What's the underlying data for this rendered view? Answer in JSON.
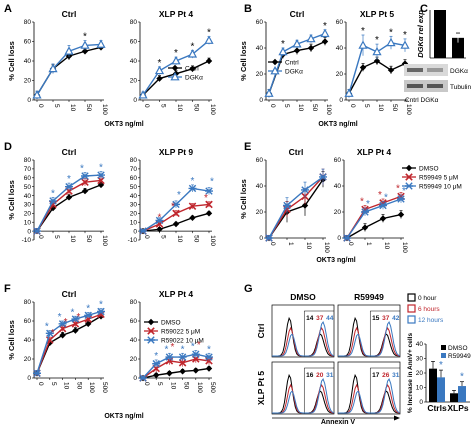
{
  "colors": {
    "black": "#000000",
    "blue": "#3a78c0",
    "red": "#c0262d",
    "gray": "#777777"
  },
  "panels": [
    {
      "id": "A",
      "label": "A"
    },
    {
      "id": "B",
      "label": "B"
    },
    {
      "id": "C",
      "label": "C"
    },
    {
      "id": "D",
      "label": "D"
    },
    {
      "id": "E",
      "label": "E"
    },
    {
      "id": "F",
      "label": "F"
    },
    {
      "id": "G",
      "label": "G"
    }
  ],
  "chart_data": [
    {
      "id": "A-ctrl",
      "panel": "A",
      "type": "line",
      "title": "Ctrl",
      "ylabel": "% Cell loss",
      "ylim": [
        0,
        80
      ],
      "yticks": [
        0,
        20,
        40,
        60,
        80
      ],
      "categories": [
        "0",
        "5",
        "10",
        "50",
        "100"
      ],
      "series": [
        {
          "key": "s1",
          "name": "Cntrl",
          "color": "#000000",
          "marker": "diamond",
          "values": [
            5,
            32,
            45,
            50,
            54
          ],
          "err": [
            4,
            4,
            4,
            3,
            3
          ]
        },
        {
          "key": "s2",
          "name": "DGKα",
          "color": "#3a78c0",
          "marker": "triangle-open",
          "values": [
            5,
            32,
            50,
            56,
            57
          ],
          "err": [
            4,
            5,
            6,
            5,
            4
          ]
        }
      ],
      "annotations": [
        "*"
      ]
    },
    {
      "id": "A-xlp",
      "panel": "A",
      "type": "line",
      "title": "XLP Pt 4",
      "xlabel": "OKT3 ng/ml",
      "ylim": [
        0,
        80
      ],
      "yticks": [
        0,
        20,
        40,
        60,
        80
      ],
      "categories": [
        "0",
        "5",
        "10",
        "50",
        "100"
      ],
      "series": [
        {
          "key": "s1",
          "name": "Cntrl",
          "color": "#000000",
          "marker": "diamond",
          "values": [
            5,
            22,
            27,
            32,
            40
          ],
          "err": [
            3,
            3,
            3,
            3,
            3
          ]
        },
        {
          "key": "s2",
          "name": "DGKα",
          "color": "#3a78c0",
          "marker": "triangle-open",
          "values": [
            5,
            30,
            40,
            47,
            61
          ],
          "err": [
            3,
            4,
            4,
            4,
            4
          ]
        }
      ],
      "legend": [
        {
          "key": "s1",
          "label": "Cntrl"
        },
        {
          "key": "s2",
          "label": "DGKα"
        }
      ],
      "annotations": [
        "*",
        "*",
        "*",
        "*"
      ]
    },
    {
      "id": "B-ctrl",
      "panel": "B",
      "type": "line",
      "title": "Ctrl",
      "ylabel": "% Cell loss",
      "ylim": [
        0,
        60
      ],
      "yticks": [
        0,
        20,
        40,
        60
      ],
      "categories": [
        "0",
        "5",
        "10",
        "50",
        "100"
      ],
      "series": [
        {
          "key": "s1",
          "name": "Cntrl",
          "color": "#000000",
          "marker": "diamond",
          "values": [
            5,
            35,
            38,
            40,
            45
          ],
          "err": [
            3,
            3,
            3,
            3,
            3
          ]
        },
        {
          "key": "s2",
          "name": "DGKα",
          "color": "#3a78c0",
          "marker": "triangle-open",
          "values": [
            5,
            37,
            43,
            47,
            51
          ],
          "err": [
            3,
            3,
            3,
            3,
            3
          ]
        }
      ],
      "annotations": [
        "*",
        "*"
      ]
    },
    {
      "id": "B-xlp",
      "panel": "B",
      "type": "line",
      "title": "XLP Pt 5",
      "xlabel": "OKT3 ng/ml",
      "ylim": [
        0,
        60
      ],
      "yticks": [
        0,
        20,
        40,
        60
      ],
      "categories": [
        "0",
        "5",
        "10",
        "50",
        "100"
      ],
      "series": [
        {
          "key": "s1",
          "name": "Cntrl",
          "color": "#000000",
          "marker": "diamond",
          "values": [
            5,
            25,
            30,
            23,
            28
          ],
          "err": [
            3,
            3,
            3,
            3,
            3
          ]
        },
        {
          "key": "s2",
          "name": "DGKα",
          "color": "#3a78c0",
          "marker": "triangle-open",
          "values": [
            5,
            42,
            37,
            44,
            42
          ],
          "err": [
            3,
            8,
            6,
            5,
            5
          ]
        }
      ],
      "legend": [
        {
          "key": "s1",
          "label": "Cntrl"
        },
        {
          "key": "s2",
          "label": "DGKα"
        }
      ],
      "annotations": [
        "*",
        "*",
        "*",
        "*"
      ]
    },
    {
      "id": "C-bar",
      "panel": "C",
      "type": "bar",
      "ylabel": "DGKα rel exp",
      "ylim": [
        0,
        1
      ],
      "categories": [
        "Cntrl",
        "DGKα"
      ],
      "values": [
        1.0,
        0.42
      ],
      "err": [
        0.0,
        0.1
      ],
      "blot": {
        "bands": [
          "DGKα",
          "Tubulin"
        ],
        "lanes": [
          "Cntrl",
          "DGKα"
        ]
      }
    },
    {
      "id": "D-ctrl",
      "panel": "D",
      "type": "line",
      "title": "Ctrl",
      "ylabel": "% Cell loss",
      "ylim": [
        -10,
        80
      ],
      "yticks": [
        -10,
        0,
        10,
        20,
        30,
        40,
        50,
        60,
        70,
        80
      ],
      "categories": [
        "0",
        "5",
        "10",
        "50",
        "100"
      ],
      "series": [
        {
          "key": "s1",
          "name": "DMSO",
          "color": "#000000",
          "marker": "diamond",
          "values": [
            0,
            26,
            38,
            45,
            52
          ],
          "err": [
            3,
            3,
            3,
            3,
            3
          ]
        },
        {
          "key": "s2",
          "name": "R59949 5 μM",
          "color": "#c0262d",
          "marker": "x",
          "values": [
            0,
            30,
            45,
            55,
            57
          ],
          "err": [
            3,
            4,
            4,
            4,
            4
          ]
        },
        {
          "key": "s3",
          "name": "R59949 10 μM",
          "color": "#3a78c0",
          "marker": "star",
          "values": [
            0,
            34,
            50,
            62,
            63
          ],
          "err": [
            3,
            4,
            4,
            4,
            4
          ]
        }
      ],
      "annotations": [
        "*",
        "*",
        "*",
        "*"
      ]
    },
    {
      "id": "D-xlp",
      "panel": "D",
      "type": "line",
      "title": "XLP Pt 9",
      "xlabel": "OKT3 ng/ml",
      "ylim": [
        -10,
        80
      ],
      "yticks": [
        -10,
        0,
        10,
        20,
        30,
        40,
        50,
        60,
        70,
        80
      ],
      "categories": [
        "0",
        "5",
        "10",
        "50",
        "100"
      ],
      "series": [
        {
          "key": "s1",
          "name": "DMSO",
          "color": "#000000",
          "marker": "diamond",
          "values": [
            0,
            2,
            8,
            15,
            20
          ],
          "err": [
            2,
            2,
            2,
            2,
            2
          ]
        },
        {
          "key": "s2",
          "name": "R59949 5 μM",
          "color": "#c0262d",
          "marker": "x",
          "values": [
            0,
            8,
            20,
            28,
            30
          ],
          "err": [
            2,
            3,
            3,
            3,
            3
          ]
        },
        {
          "key": "s3",
          "name": "R59949 10 μM",
          "color": "#3a78c0",
          "marker": "star",
          "values": [
            0,
            12,
            30,
            48,
            45
          ],
          "err": [
            2,
            3,
            4,
            4,
            4
          ]
        }
      ],
      "annotations": [
        "*",
        "*",
        "*",
        "*",
        "*",
        "*"
      ]
    },
    {
      "id": "E-ctrl",
      "panel": "E",
      "type": "line",
      "title": "Ctrl",
      "ylabel": "% Cell loss",
      "ylim": [
        0,
        60
      ],
      "yticks": [
        0,
        20,
        40,
        60
      ],
      "categories": [
        "0",
        "1",
        "10",
        "100"
      ],
      "series": [
        {
          "key": "s1",
          "name": "DMSO",
          "color": "#000000",
          "marker": "diamond",
          "values": [
            0,
            20,
            25,
            45
          ],
          "err": [
            2,
            8,
            8,
            6
          ]
        },
        {
          "key": "s2",
          "name": "R59949 5 μM",
          "color": "#c0262d",
          "marker": "x",
          "values": [
            0,
            22,
            32,
            47
          ],
          "err": [
            2,
            6,
            6,
            6
          ]
        },
        {
          "key": "s3",
          "name": "R59949 10 μM",
          "color": "#3a78c0",
          "marker": "star",
          "values": [
            0,
            25,
            37,
            47
          ],
          "err": [
            2,
            6,
            6,
            6
          ]
        }
      ]
    },
    {
      "id": "E-xlp",
      "panel": "E",
      "type": "line",
      "title": "XLP Pt 4",
      "xlabel": "OKT3 ng/ml",
      "ylim": [
        0,
        60
      ],
      "yticks": [
        0,
        20,
        40,
        60
      ],
      "categories": [
        "0",
        "1",
        "10",
        "100"
      ],
      "series": [
        {
          "key": "s1",
          "name": "DMSO",
          "color": "#000000",
          "marker": "diamond",
          "values": [
            0,
            8,
            15,
            18
          ],
          "err": [
            2,
            3,
            3,
            3
          ]
        },
        {
          "key": "s2",
          "name": "R59949 5 μM",
          "color": "#c0262d",
          "marker": "x",
          "values": [
            0,
            22,
            27,
            32
          ],
          "err": [
            2,
            3,
            3,
            3
          ]
        },
        {
          "key": "s3",
          "name": "R59949 10 μM",
          "color": "#3a78c0",
          "marker": "star",
          "values": [
            0,
            20,
            25,
            30
          ],
          "err": [
            2,
            3,
            3,
            3
          ]
        }
      ],
      "legend": [
        {
          "key": "s1",
          "label": "DMSO"
        },
        {
          "key": "s2",
          "label": "R59949 5 μM"
        },
        {
          "key": "s3",
          "label": "R59949 10 μM"
        }
      ],
      "annotations": [
        "*",
        "*",
        "*",
        "*",
        "*",
        "*"
      ]
    },
    {
      "id": "F-ctrl",
      "panel": "F",
      "type": "line",
      "title": "Ctrl",
      "ylabel": "% Cell loss",
      "ylim": [
        0,
        80
      ],
      "yticks": [
        0,
        20,
        40,
        60,
        80
      ],
      "categories": [
        "0",
        "5",
        "10",
        "50",
        "100",
        "500"
      ],
      "series": [
        {
          "key": "s1",
          "name": "DMSO",
          "color": "#000000",
          "marker": "diamond",
          "values": [
            5,
            37,
            45,
            50,
            57,
            65
          ],
          "err": [
            3,
            3,
            3,
            3,
            3,
            3
          ]
        },
        {
          "key": "s2",
          "name": "R59022 5 μM",
          "color": "#c0262d",
          "marker": "x",
          "values": [
            5,
            40,
            52,
            57,
            62,
            67
          ],
          "err": [
            3,
            3,
            3,
            3,
            3,
            3
          ]
        },
        {
          "key": "s3",
          "name": "R59022 10 μM",
          "color": "#3a78c0",
          "marker": "star",
          "values": [
            5,
            47,
            57,
            62,
            66,
            70
          ],
          "err": [
            3,
            3,
            3,
            3,
            3,
            3
          ]
        }
      ],
      "annotations": [
        "*",
        "*",
        "*",
        "*",
        "*",
        "*",
        "*",
        "*"
      ]
    },
    {
      "id": "F-xlp",
      "panel": "F",
      "type": "line",
      "title": "XLP Pt 4",
      "xlabel": "OKT3 ng/ml",
      "ylim": [
        0,
        80
      ],
      "yticks": [
        0,
        20,
        40,
        60,
        80
      ],
      "categories": [
        "0",
        "5",
        "10",
        "50",
        "100",
        "500"
      ],
      "series": [
        {
          "key": "s1",
          "name": "DMSO",
          "color": "#000000",
          "marker": "diamond",
          "values": [
            0,
            3,
            5,
            7,
            8,
            10
          ],
          "err": [
            2,
            2,
            2,
            2,
            2,
            2
          ]
        },
        {
          "key": "s2",
          "name": "R59022 5 μM",
          "color": "#c0262d",
          "marker": "x",
          "values": [
            0,
            10,
            18,
            16,
            20,
            18
          ],
          "err": [
            2,
            4,
            4,
            4,
            4,
            4
          ]
        },
        {
          "key": "s3",
          "name": "R59022 10 μM",
          "color": "#3a78c0",
          "marker": "star",
          "values": [
            0,
            15,
            22,
            22,
            25,
            22
          ],
          "err": [
            2,
            4,
            4,
            4,
            4,
            4
          ]
        }
      ],
      "legend": [
        {
          "key": "s1",
          "label": "DMSO"
        },
        {
          "key": "s2",
          "label": "R59022 5 μM"
        },
        {
          "key": "s3",
          "label": "R59022 10 μM"
        }
      ],
      "annotations": [
        "*",
        "*",
        "*",
        "*",
        "*",
        "*",
        "*"
      ]
    },
    {
      "id": "G-hist",
      "panel": "G",
      "type": "line",
      "xlabel": "Annexin V",
      "columns": [
        "DMSO",
        "R59949"
      ],
      "rows": [
        "Ctrl",
        "XLP Pt 5"
      ],
      "legend": [
        {
          "key": "h0",
          "label": "0 hour",
          "color": "#000000"
        },
        {
          "key": "h6",
          "label": "6 hours",
          "color": "#c0262d"
        },
        {
          "key": "h12",
          "label": "12 hours",
          "color": "#3a78c0"
        }
      ],
      "cells": [
        {
          "row": "Ctrl",
          "col": "DMSO",
          "values": [
            "14",
            "37",
            "44"
          ]
        },
        {
          "row": "Ctrl",
          "col": "R59949",
          "values": [
            "15",
            "37",
            "42"
          ]
        },
        {
          "row": "XLP Pt 5",
          "col": "DMSO",
          "values": [
            "16",
            "20",
            "31"
          ]
        },
        {
          "row": "XLP Pt 5",
          "col": "R59949",
          "values": [
            "17",
            "26",
            "31"
          ]
        }
      ]
    },
    {
      "id": "G-bar",
      "panel": "G",
      "type": "bar",
      "ylabel": "% Increase in AnnV+ cells",
      "ylim": [
        0,
        40
      ],
      "yticks": [
        0,
        10,
        20,
        30,
        40
      ],
      "categories": [
        "Ctrls",
        "XLPs"
      ],
      "series": [
        {
          "key": "s1",
          "name": "DMSO",
          "color": "#000000",
          "values": [
            23,
            6
          ],
          "err": [
            5,
            2
          ]
        },
        {
          "key": "s2",
          "name": "R59949",
          "color": "#3a78c0",
          "values": [
            17,
            11
          ],
          "err": [
            5,
            3
          ]
        }
      ],
      "legend": [
        {
          "key": "s1",
          "label": "DMSO"
        },
        {
          "key": "s2",
          "label": "R59949"
        }
      ],
      "annotations": [
        "*",
        "*"
      ]
    }
  ]
}
